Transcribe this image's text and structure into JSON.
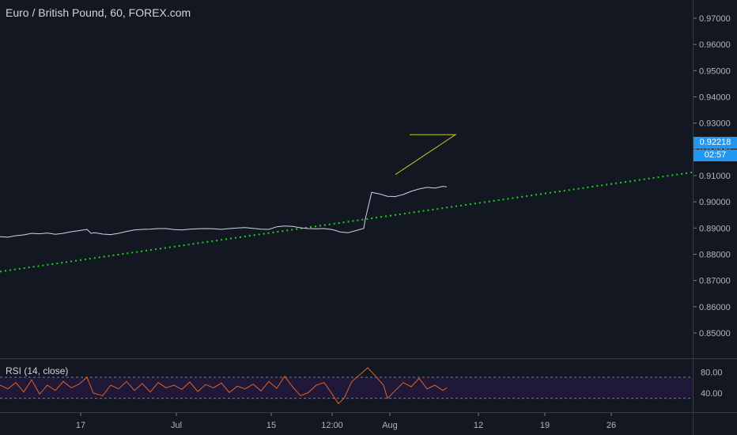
{
  "header": {
    "title": "Euro / British Pound, 60, FOREX.com"
  },
  "rsi": {
    "label": "RSI (14, close)",
    "upper": 70,
    "lower": 30,
    "ticks": [
      "80.00",
      "40.00"
    ]
  },
  "price_axis": {
    "ticks": [
      "0.97000",
      "0.96000",
      "0.95000",
      "0.94000",
      "0.93000",
      "0.92000",
      "0.91000",
      "0.90000",
      "0.89000",
      "0.88000",
      "0.87000",
      "0.86000",
      "0.85000"
    ],
    "last_price": "0.92218",
    "countdown": "02:57"
  },
  "time_axis": {
    "ticks": [
      "17",
      "Jul",
      "15",
      "12:00",
      "Aug",
      "12",
      "19",
      "26"
    ]
  },
  "colors": {
    "background": "#131722",
    "price_line": "#c9d7e6",
    "trend_line": "#1fd11f",
    "triangle": "#c6c820",
    "rsi_line": "#e0621f",
    "rsi_band": "#1f1838",
    "accent": "#2196f3"
  },
  "chart_data": {
    "type": "line",
    "title": "Euro / British Pound, 60, FOREX.com",
    "xlabel": "",
    "ylabel": "",
    "ylim": [
      0.843,
      0.9745
    ],
    "x_ticks": [
      "17",
      "Jul",
      "15",
      "12:00",
      "Aug",
      "12",
      "19",
      "26"
    ],
    "series": [],
    "price_path": [
      [
        0,
        0.8867
      ],
      [
        10,
        0.8865
      ],
      [
        20,
        0.8871
      ],
      [
        30,
        0.8874
      ],
      [
        40,
        0.888
      ],
      [
        50,
        0.8878
      ],
      [
        60,
        0.8881
      ],
      [
        70,
        0.8876
      ],
      [
        80,
        0.888
      ],
      [
        90,
        0.8886
      ],
      [
        100,
        0.889
      ],
      [
        110,
        0.8895
      ],
      [
        115,
        0.888
      ],
      [
        120,
        0.8882
      ],
      [
        130,
        0.8877
      ],
      [
        140,
        0.8875
      ],
      [
        150,
        0.888
      ],
      [
        160,
        0.8887
      ],
      [
        170,
        0.8893
      ],
      [
        180,
        0.8895
      ],
      [
        190,
        0.8896
      ],
      [
        200,
        0.8898
      ],
      [
        210,
        0.8898
      ],
      [
        220,
        0.8894
      ],
      [
        230,
        0.8893
      ],
      [
        240,
        0.8896
      ],
      [
        250,
        0.8897
      ],
      [
        260,
        0.8898
      ],
      [
        270,
        0.8897
      ],
      [
        280,
        0.8895
      ],
      [
        290,
        0.8898
      ],
      [
        300,
        0.89
      ],
      [
        310,
        0.8902
      ],
      [
        320,
        0.8899
      ],
      [
        330,
        0.8896
      ],
      [
        340,
        0.8895
      ],
      [
        350,
        0.8905
      ],
      [
        360,
        0.8908
      ],
      [
        370,
        0.8906
      ],
      [
        380,
        0.8901
      ],
      [
        390,
        0.8898
      ],
      [
        400,
        0.8897
      ],
      [
        410,
        0.8898
      ],
      [
        420,
        0.8894
      ],
      [
        425,
        0.889
      ],
      [
        430,
        0.8885
      ],
      [
        440,
        0.8882
      ],
      [
        450,
        0.889
      ],
      [
        460,
        0.8899
      ],
      [
        462,
        0.8935
      ],
      [
        470,
        0.9036
      ],
      [
        480,
        0.903
      ],
      [
        490,
        0.9021
      ],
      [
        500,
        0.902
      ],
      [
        510,
        0.9028
      ],
      [
        520,
        0.904
      ],
      [
        530,
        0.9049
      ],
      [
        540,
        0.9055
      ],
      [
        550,
        0.9052
      ],
      [
        560,
        0.9059
      ],
      [
        565,
        0.9057
      ]
    ],
    "trend_line": {
      "start": [
        0,
        0.8734
      ],
      "end": [
        875,
        0.9112
      ]
    },
    "triangle": {
      "top": 0.9256,
      "apex_x": 576,
      "base_start_x": 500,
      "base_low": 0.9104
    },
    "rsi_path": [
      [
        0,
        55
      ],
      [
        10,
        48
      ],
      [
        20,
        60
      ],
      [
        30,
        42
      ],
      [
        40,
        65
      ],
      [
        50,
        38
      ],
      [
        60,
        55
      ],
      [
        70,
        45
      ],
      [
        80,
        62
      ],
      [
        90,
        50
      ],
      [
        100,
        57
      ],
      [
        110,
        70
      ],
      [
        118,
        40
      ],
      [
        130,
        35
      ],
      [
        140,
        55
      ],
      [
        150,
        48
      ],
      [
        160,
        62
      ],
      [
        170,
        45
      ],
      [
        180,
        58
      ],
      [
        190,
        42
      ],
      [
        200,
        60
      ],
      [
        210,
        50
      ],
      [
        220,
        55
      ],
      [
        230,
        47
      ],
      [
        240,
        61
      ],
      [
        250,
        43
      ],
      [
        260,
        56
      ],
      [
        270,
        50
      ],
      [
        280,
        59
      ],
      [
        290,
        41
      ],
      [
        300,
        53
      ],
      [
        310,
        48
      ],
      [
        320,
        57
      ],
      [
        330,
        44
      ],
      [
        340,
        62
      ],
      [
        350,
        49
      ],
      [
        360,
        72
      ],
      [
        370,
        52
      ],
      [
        380,
        35
      ],
      [
        390,
        41
      ],
      [
        400,
        55
      ],
      [
        410,
        60
      ],
      [
        420,
        38
      ],
      [
        428,
        20
      ],
      [
        435,
        30
      ],
      [
        445,
        62
      ],
      [
        455,
        75
      ],
      [
        465,
        88
      ],
      [
        475,
        72
      ],
      [
        485,
        55
      ],
      [
        490,
        30
      ],
      [
        500,
        45
      ],
      [
        510,
        60
      ],
      [
        520,
        52
      ],
      [
        530,
        68
      ],
      [
        540,
        48
      ],
      [
        550,
        55
      ],
      [
        560,
        45
      ],
      [
        565,
        50
      ]
    ]
  }
}
